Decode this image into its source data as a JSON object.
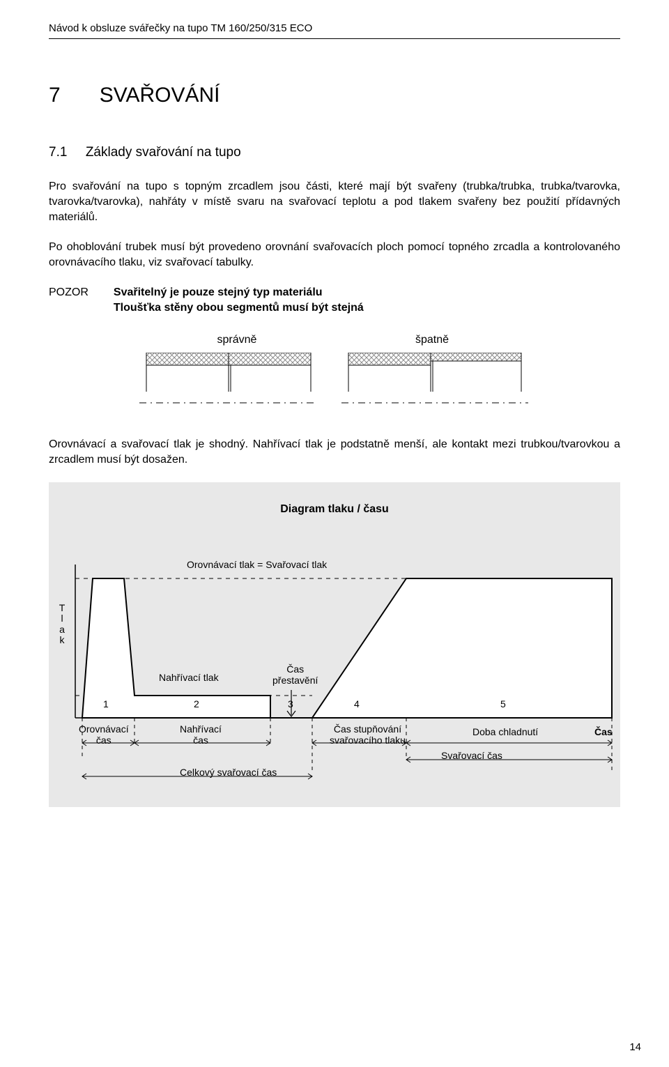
{
  "headerLine": "Návod k obsluze svářečky na tupo TM 160/250/315 ECO",
  "chapterNumber": "7",
  "chapterTitle": "SVAŘOVÁNÍ",
  "sectionNumber": "7.1",
  "sectionTitle": "Základy svařování na tupo",
  "para1": "Pro svařování na tupo s topným zrcadlem jsou části, které mají být svařeny (trubka/trubka, trubka/tvarovka, tvarovka/tvarovka), nahřáty v místě svaru na svařovací teplotu a pod tlakem svařeny bez použití přídavných materiálů.",
  "para2": "Po ohoblování trubek musí být provedeno orovnání svařovacích ploch pomocí topného zrcadla a kontrolovaného orovnávacího tlaku, viz svařovací tabulky.",
  "pozorLabel": "POZOR",
  "pozorLine1": "Svařitelný je pouze stejný typ materiálu",
  "pozorLine2": "Tloušťka stěny obou segmentů musí být stejná",
  "alignDiagram": {
    "labelCorrect": "správně",
    "labelWrong": "špatně",
    "hatchColor": "#808080",
    "lineColor": "#000000"
  },
  "para3": "Orovnávací a svařovací tlak je shodný. Nahřívací tlak je podstatně menší, ale kontakt mezi trubkou/tvarovkou a zrcadlem musí být dosažen.",
  "chart": {
    "title": "Diagram tlaku / času",
    "yAxisLabel": "Tlak",
    "equivalenceText": "Orovnávací tlak  =  Svařovací tlak",
    "midLabelHeating": "Nahřívací tlak",
    "midLabelChangeover1": "Čas",
    "midLabelChangeover2": "přestavění",
    "phases": [
      "1",
      "2",
      "3",
      "4",
      "5"
    ],
    "phaseNames": {
      "p1a": "Orovnávací",
      "p1b": "čas",
      "p2a": "Nahřívací",
      "p2b": "čas",
      "p4a": "Čas stupňování",
      "p4b": "svařovacího tlaku",
      "p5": "Doba chladnutí"
    },
    "xAxisLabel": "Čas",
    "totalTimeLabel": "Celkový svařovací čas",
    "weldTimeLabel": "Svařovací čas",
    "bgColor": "#e8e8e8",
    "lineColor": "#000000",
    "fillColor": "#ffffff",
    "pressureHigh": 150,
    "pressureLow": 18,
    "xTicks": [
      40,
      115,
      310,
      370,
      505,
      800
    ]
  },
  "pageNumber": "14"
}
